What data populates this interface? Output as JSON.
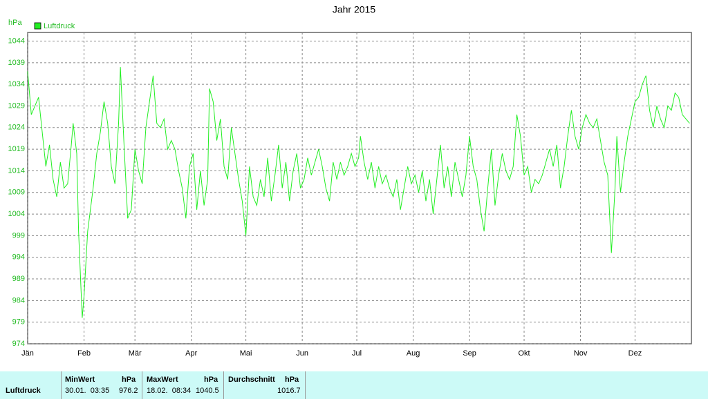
{
  "chart_data": {
    "type": "line",
    "title": "Jahr 2015",
    "ylabel": "hPa",
    "x": [
      0,
      2,
      4,
      6,
      8,
      10,
      12,
      14,
      16,
      18,
      20,
      22,
      24,
      25,
      27,
      28,
      30,
      31,
      33,
      36,
      38,
      40,
      42,
      44,
      46,
      48,
      50,
      51,
      53,
      55,
      57,
      59,
      61,
      63,
      65,
      67,
      69,
      71,
      73,
      75,
      77,
      79,
      81,
      83,
      85,
      87,
      89,
      91,
      93,
      95,
      97,
      99,
      100,
      102,
      104,
      106,
      108,
      110,
      112,
      114,
      116,
      118,
      120,
      122,
      124,
      126,
      128,
      130,
      132,
      134,
      136,
      138,
      140,
      142,
      144,
      146,
      148,
      150,
      152,
      154,
      156,
      158,
      160,
      162,
      164,
      166,
      168,
      170,
      172,
      174,
      176,
      178,
      180,
      182,
      183,
      185,
      187,
      189,
      191,
      193,
      195,
      197,
      199,
      201,
      203,
      205,
      207,
      209,
      211,
      213,
      215,
      217,
      219,
      221,
      223,
      225,
      227,
      229,
      231,
      233,
      235,
      237,
      239,
      241,
      243,
      245,
      247,
      249,
      251,
      253,
      255,
      257,
      259,
      261,
      263,
      265,
      267,
      269,
      271,
      273,
      275,
      277,
      279,
      281,
      283,
      285,
      287,
      289,
      291,
      293,
      295,
      297,
      299,
      301,
      303,
      305,
      307,
      309,
      311,
      313,
      315,
      317,
      319,
      321,
      323,
      324,
      326,
      328,
      330,
      332,
      334,
      336,
      338,
      340,
      342,
      344,
      346,
      348,
      350,
      352,
      354,
      356,
      358,
      360,
      362,
      364
    ],
    "series": [
      {
        "name": "Luftdruck",
        "color": "#22ee22",
        "values": [
          1037,
          1027,
          1029,
          1031,
          1023,
          1015,
          1020,
          1012,
          1008,
          1016,
          1010,
          1011,
          1020,
          1025,
          1018,
          1000,
          980,
          985,
          1000,
          1010,
          1018,
          1023,
          1030,
          1025,
          1015,
          1011,
          1025,
          1038,
          1020,
          1003,
          1005,
          1019,
          1014,
          1011,
          1024,
          1030,
          1036,
          1025,
          1024,
          1026,
          1019,
          1021,
          1019,
          1014,
          1010,
          1003,
          1015,
          1018,
          1005,
          1014,
          1006,
          1012,
          1033,
          1030,
          1021,
          1026,
          1015,
          1012,
          1024,
          1018,
          1012,
          1007,
          999,
          1015,
          1008,
          1006,
          1012,
          1008,
          1017,
          1007,
          1013,
          1020,
          1010,
          1016,
          1007,
          1014,
          1018,
          1010,
          1012,
          1017,
          1013,
          1016,
          1019,
          1015,
          1010,
          1007,
          1016,
          1012,
          1016,
          1013,
          1015,
          1018,
          1015,
          1017,
          1022,
          1016,
          1012,
          1016,
          1010,
          1015,
          1011,
          1013,
          1010,
          1008,
          1012,
          1005,
          1010,
          1015,
          1011,
          1013,
          1009,
          1014,
          1007,
          1012,
          1004,
          1012,
          1020,
          1010,
          1015,
          1008,
          1016,
          1012,
          1008,
          1013,
          1022,
          1015,
          1012,
          1005,
          1000,
          1010,
          1019,
          1006,
          1013,
          1018,
          1014,
          1012,
          1015,
          1027,
          1022,
          1013,
          1015,
          1009,
          1012,
          1011,
          1013,
          1016,
          1019,
          1015,
          1020,
          1010,
          1015,
          1022,
          1028,
          1022,
          1019,
          1024,
          1027,
          1025,
          1024,
          1026,
          1021,
          1016,
          1013,
          995,
          1010,
          1022,
          1009,
          1016,
          1022,
          1026,
          1030,
          1031,
          1034,
          1036,
          1028,
          1024,
          1029,
          1026,
          1024,
          1029,
          1028,
          1032,
          1031,
          1027,
          1026,
          1025
        ]
      }
    ],
    "xlim": [
      0,
      365
    ],
    "xticks": [
      {
        "value": 0,
        "label": "Jän"
      },
      {
        "value": 31,
        "label": "Feb"
      },
      {
        "value": 59,
        "label": "Mär"
      },
      {
        "value": 90,
        "label": "Apr"
      },
      {
        "value": 120,
        "label": "Mai"
      },
      {
        "value": 151,
        "label": "Jun"
      },
      {
        "value": 181,
        "label": "Jul"
      },
      {
        "value": 212,
        "label": "Aug"
      },
      {
        "value": 243,
        "label": "Sep"
      },
      {
        "value": 273,
        "label": "Okt"
      },
      {
        "value": 304,
        "label": "Nov"
      },
      {
        "value": 334,
        "label": "Dez"
      }
    ],
    "ylim": [
      974,
      1046
    ],
    "yticks": [
      974,
      979,
      984,
      989,
      994,
      999,
      1004,
      1009,
      1014,
      1019,
      1024,
      1029,
      1034,
      1039,
      1044
    ],
    "grid": true
  },
  "table": {
    "header": [
      "MinWert",
      "hPa",
      "MaxWert",
      "hPa",
      "Durchschnitt",
      "hPa"
    ],
    "rows": [
      [
        "Luftdruck",
        "30.01.  03:35",
        "976.2",
        "18.02.  08:34",
        "1040.5",
        "1016.7"
      ]
    ]
  }
}
